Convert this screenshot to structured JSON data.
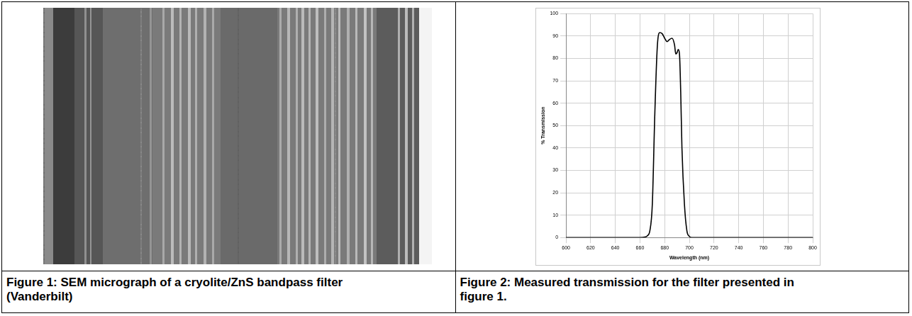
{
  "captions": [
    "Figure 1: SEM micrograph of a cryolite/ZnS bandpass filter (Vanderbilt)",
    "Figure 2: Measured transmission for the filter presented in figure 1."
  ],
  "chart_data": {
    "type": "line",
    "x_label": "Wavelength (nm)",
    "y_label": "% Transmission",
    "x": [
      600,
      620,
      640,
      650,
      660,
      664,
      666,
      668,
      670,
      672,
      674,
      676,
      678,
      680,
      682,
      684,
      686,
      688,
      689,
      690,
      691,
      692,
      693,
      694,
      696,
      698,
      700,
      702,
      710,
      720,
      740,
      760,
      780,
      800
    ],
    "series": [
      {
        "color": "#000000",
        "values": [
          0,
          0,
          0,
          0,
          0,
          0.2,
          0.8,
          3,
          15,
          55,
          85,
          91.5,
          91,
          89,
          87.5,
          88.5,
          89,
          86,
          82,
          82.5,
          84,
          82,
          65,
          40,
          15,
          3,
          0.5,
          0,
          0,
          0,
          0,
          0,
          0,
          0
        ]
      }
    ],
    "xlim": [
      600,
      800
    ],
    "xticks": [
      600,
      620,
      640,
      660,
      680,
      700,
      720,
      740,
      760,
      780,
      800
    ],
    "ylim": [
      0,
      100
    ],
    "yticks": [
      0,
      10,
      20,
      30,
      40,
      50,
      60,
      70,
      80,
      90,
      100
    ],
    "grid": true
  }
}
